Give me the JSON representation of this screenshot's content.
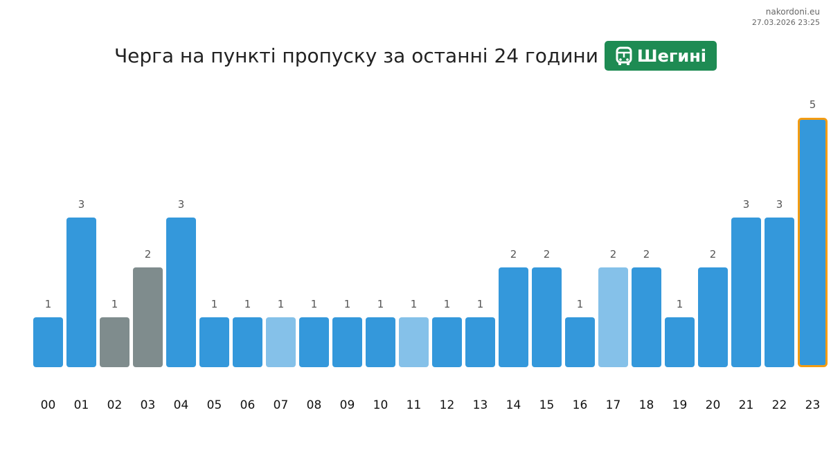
{
  "watermark": {
    "site": "nakordoni.eu",
    "timestamp": "27.03.2026 23:25"
  },
  "header": {
    "title": "Черга на пункті пропуску за останні 24 години",
    "checkpoint": "Шегині",
    "checkpoint_icon": "bus-icon",
    "badge_color": "#1e8b53"
  },
  "colors": {
    "normal": "#3498db",
    "light": "#85c1e9",
    "gray": "#7f8c8d",
    "current_outline": "#f39c12"
  },
  "chart_data": {
    "type": "bar",
    "title": "Черга на пункті пропуску за останні 24 години",
    "categories": [
      "00",
      "01",
      "02",
      "03",
      "04",
      "05",
      "06",
      "07",
      "08",
      "09",
      "10",
      "11",
      "12",
      "13",
      "14",
      "15",
      "16",
      "17",
      "18",
      "19",
      "20",
      "21",
      "22",
      "23"
    ],
    "values": [
      1,
      3,
      1,
      2,
      3,
      1,
      1,
      1,
      1,
      1,
      1,
      1,
      1,
      1,
      2,
      2,
      1,
      2,
      2,
      1,
      2,
      3,
      3,
      5
    ],
    "bar_styles": [
      "normal",
      "normal",
      "gray",
      "gray",
      "normal",
      "normal",
      "normal",
      "light",
      "normal",
      "normal",
      "normal",
      "light",
      "normal",
      "normal",
      "normal",
      "normal",
      "normal",
      "light",
      "normal",
      "normal",
      "normal",
      "normal",
      "normal",
      "current"
    ],
    "highlighted_category": "23",
    "ylim": [
      0,
      5
    ],
    "grid": false,
    "legend": "none",
    "data_labels": true
  }
}
